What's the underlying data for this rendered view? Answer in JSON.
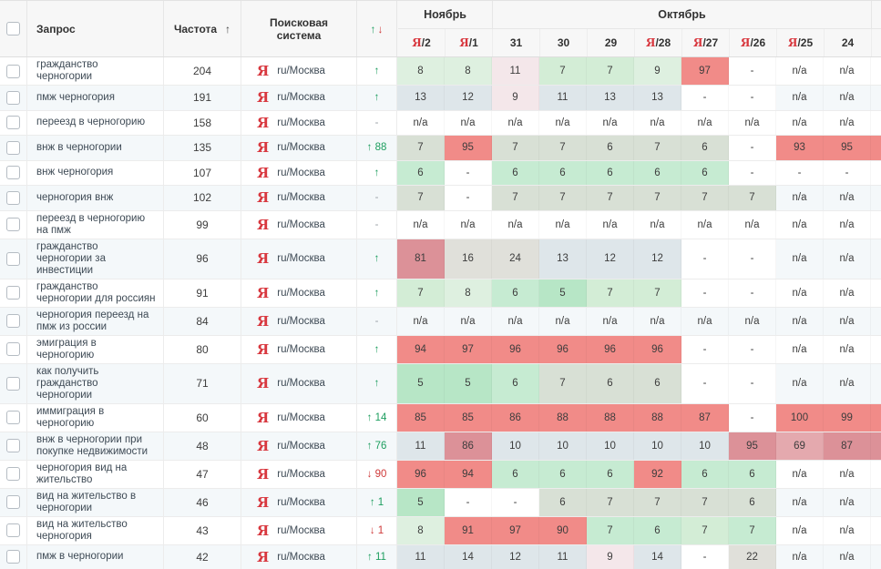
{
  "header": {
    "query": "Запрос",
    "frequency": "Частота",
    "freq_sort_icon": "↑",
    "search_engine": "Поисковая система",
    "change_up": "↑",
    "change_down": "↓",
    "months": [
      {
        "label": "Ноябрь",
        "span": 2
      },
      {
        "label": "Октябрь",
        "span": 8
      }
    ],
    "days": [
      {
        "yandex": true,
        "day": "2"
      },
      {
        "yandex": true,
        "day": "1"
      },
      {
        "yandex": false,
        "day": "31"
      },
      {
        "yandex": false,
        "day": "30"
      },
      {
        "yandex": false,
        "day": "29"
      },
      {
        "yandex": true,
        "day": "28"
      },
      {
        "yandex": true,
        "day": "27"
      },
      {
        "yandex": true,
        "day": "26"
      },
      {
        "yandex": true,
        "day": "25"
      },
      {
        "yandex": false,
        "day": "24"
      }
    ]
  },
  "engine": {
    "icon": "Я",
    "label": "ru/Москва"
  },
  "arrows": {
    "up": "↑",
    "down": "↓",
    "none": "-"
  },
  "palette": {
    "g1": "#b7e6c6",
    "g2": "#c6ebd2",
    "g3": "#d3edd6",
    "g4": "#def0e0",
    "gg": "#d8e0d5",
    "gb": "#dee6ea",
    "gy": "#e0e0da",
    "pk": "#f4e7ea",
    "rd": "#f18b88",
    "ro": "#dc9198",
    "rl": "#e4a9ae",
    "dw": "#ffffff",
    "wh": ""
  },
  "rows": [
    {
      "q": "гражданство черногории",
      "f": "204",
      "d": "up",
      "n": "",
      "v": [
        "8",
        "8",
        "11",
        "7",
        "7",
        "9",
        "97",
        "-",
        "n/a",
        "n/a"
      ],
      "c": [
        "g4",
        "g4",
        "pk",
        "g3",
        "g3",
        "g4",
        "rd",
        "wh",
        "wh",
        "wh"
      ]
    },
    {
      "q": "пмж черногория",
      "f": "191",
      "d": "up",
      "n": "",
      "v": [
        "13",
        "12",
        "9",
        "11",
        "13",
        "13",
        "-",
        "-",
        "n/a",
        "n/a"
      ],
      "c": [
        "gb",
        "gb",
        "pk",
        "gb",
        "gb",
        "gb",
        "dw",
        "dw",
        "wh",
        "wh"
      ]
    },
    {
      "q": "переезд в черногорию",
      "f": "158",
      "d": "none",
      "n": "",
      "v": [
        "n/a",
        "n/a",
        "n/a",
        "n/a",
        "n/a",
        "n/a",
        "n/a",
        "n/a",
        "n/a",
        "n/a"
      ],
      "c": [
        "wh",
        "wh",
        "wh",
        "wh",
        "wh",
        "wh",
        "wh",
        "wh",
        "wh",
        "wh"
      ]
    },
    {
      "q": "внж в черногории",
      "f": "135",
      "d": "up",
      "n": "88",
      "v": [
        "7",
        "95",
        "7",
        "7",
        "6",
        "7",
        "6",
        "-",
        "93",
        "95"
      ],
      "c": [
        "gg",
        "rd",
        "gg",
        "gg",
        "gg",
        "gg",
        "gg",
        "dw",
        "rd",
        "rd"
      ]
    },
    {
      "q": "внж черногория",
      "f": "107",
      "d": "up",
      "n": "",
      "v": [
        "6",
        "-",
        "6",
        "6",
        "6",
        "6",
        "6",
        "-",
        "-",
        "-"
      ],
      "c": [
        "g2",
        "wh",
        "g2",
        "g2",
        "g2",
        "g2",
        "g2",
        "wh",
        "wh",
        "wh"
      ]
    },
    {
      "q": "черногория внж",
      "f": "102",
      "d": "none",
      "n": "",
      "v": [
        "7",
        "-",
        "7",
        "7",
        "7",
        "7",
        "7",
        "7",
        "n/a",
        "n/a"
      ],
      "c": [
        "gg",
        "dw",
        "gg",
        "gg",
        "gg",
        "gg",
        "gg",
        "gg",
        "wh",
        "wh"
      ]
    },
    {
      "q": "переезд в черногорию на пмж",
      "f": "99",
      "d": "none",
      "n": "",
      "v": [
        "n/a",
        "n/a",
        "n/a",
        "n/a",
        "n/a",
        "n/a",
        "n/a",
        "n/a",
        "n/a",
        "n/a"
      ],
      "c": [
        "wh",
        "wh",
        "wh",
        "wh",
        "wh",
        "wh",
        "wh",
        "wh",
        "wh",
        "wh"
      ]
    },
    {
      "q": "гражданство черногории за инвестиции",
      "f": "96",
      "d": "up",
      "n": "",
      "v": [
        "81",
        "16",
        "24",
        "13",
        "12",
        "12",
        "-",
        "-",
        "n/a",
        "n/a"
      ],
      "c": [
        "ro",
        "gy",
        "gy",
        "gb",
        "gb",
        "gb",
        "dw",
        "dw",
        "wh",
        "wh"
      ]
    },
    {
      "q": "гражданство черногории для россиян",
      "f": "91",
      "d": "up",
      "n": "",
      "v": [
        "7",
        "8",
        "6",
        "5",
        "7",
        "7",
        "-",
        "-",
        "n/a",
        "n/a"
      ],
      "c": [
        "g3",
        "g4",
        "g2",
        "g1",
        "g3",
        "g3",
        "wh",
        "wh",
        "wh",
        "wh"
      ]
    },
    {
      "q": "черногория переезд на пмж из россии",
      "f": "84",
      "d": "none",
      "n": "",
      "v": [
        "n/a",
        "n/a",
        "n/a",
        "n/a",
        "n/a",
        "n/a",
        "n/a",
        "n/a",
        "n/a",
        "n/a"
      ],
      "c": [
        "wh",
        "wh",
        "wh",
        "wh",
        "wh",
        "wh",
        "wh",
        "wh",
        "wh",
        "wh"
      ]
    },
    {
      "q": "эмиграция в черногорию",
      "f": "80",
      "d": "up",
      "n": "",
      "v": [
        "94",
        "97",
        "96",
        "96",
        "96",
        "96",
        "-",
        "-",
        "n/a",
        "n/a"
      ],
      "c": [
        "rd",
        "rd",
        "rd",
        "rd",
        "rd",
        "rd",
        "wh",
        "wh",
        "wh",
        "wh"
      ]
    },
    {
      "q": "как получить гражданство черногории",
      "f": "71",
      "d": "up",
      "n": "",
      "v": [
        "5",
        "5",
        "6",
        "7",
        "6",
        "6",
        "-",
        "-",
        "n/a",
        "n/a"
      ],
      "c": [
        "g1",
        "g1",
        "g2",
        "gg",
        "gg",
        "gg",
        "dw",
        "dw",
        "wh",
        "wh"
      ]
    },
    {
      "q": "иммиграция в черногорию",
      "f": "60",
      "d": "up",
      "n": "14",
      "v": [
        "85",
        "85",
        "86",
        "88",
        "88",
        "88",
        "87",
        "-",
        "100",
        "99"
      ],
      "c": [
        "rd",
        "rd",
        "rd",
        "rd",
        "rd",
        "rd",
        "rd",
        "wh",
        "rd",
        "rd"
      ]
    },
    {
      "q": "внж в черногории при покупке недвижимости",
      "f": "48",
      "d": "up",
      "n": "76",
      "v": [
        "11",
        "86",
        "10",
        "10",
        "10",
        "10",
        "10",
        "95",
        "69",
        "87"
      ],
      "c": [
        "gb",
        "ro",
        "gb",
        "gb",
        "gb",
        "gb",
        "gb",
        "ro",
        "rl",
        "ro"
      ]
    },
    {
      "q": "черногория вид на жительство",
      "f": "47",
      "d": "down",
      "n": "90",
      "v": [
        "96",
        "94",
        "6",
        "6",
        "6",
        "92",
        "6",
        "6",
        "n/a",
        "n/a"
      ],
      "c": [
        "rd",
        "rd",
        "g2",
        "g2",
        "g2",
        "rd",
        "g2",
        "g2",
        "wh",
        "wh"
      ]
    },
    {
      "q": "вид на жительство в черногории",
      "f": "46",
      "d": "up",
      "n": "1",
      "v": [
        "5",
        "-",
        "-",
        "6",
        "7",
        "7",
        "7",
        "6",
        "n/a",
        "n/a"
      ],
      "c": [
        "g1",
        "dw",
        "dw",
        "gg",
        "gg",
        "gg",
        "gg",
        "gg",
        "wh",
        "wh"
      ]
    },
    {
      "q": "вид на жительство черногория",
      "f": "43",
      "d": "down",
      "n": "1",
      "v": [
        "8",
        "91",
        "97",
        "90",
        "7",
        "6",
        "7",
        "7",
        "n/a",
        "n/a"
      ],
      "c": [
        "g4",
        "rd",
        "rd",
        "rd",
        "g2",
        "g2",
        "g3",
        "g2",
        "wh",
        "wh"
      ]
    },
    {
      "q": "пмж в черногории",
      "f": "42",
      "d": "up",
      "n": "11",
      "v": [
        "11",
        "14",
        "12",
        "11",
        "9",
        "14",
        "-",
        "22",
        "n/a",
        "n/a"
      ],
      "c": [
        "gb",
        "gb",
        "gb",
        "gb",
        "pk",
        "gb",
        "dw",
        "gy",
        "wh",
        "wh"
      ]
    }
  ]
}
